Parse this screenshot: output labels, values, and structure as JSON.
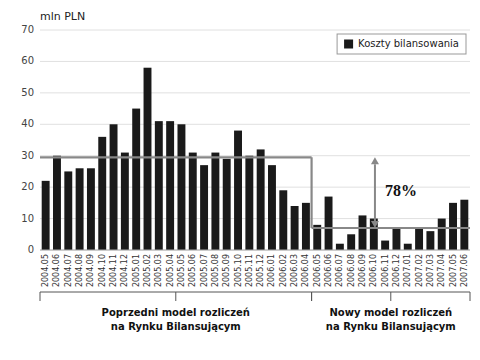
{
  "chart_data": {
    "type": "bar",
    "y_label": "mln PLN",
    "categories": [
      "2004.05",
      "2004.06",
      "2004.07",
      "2004.08",
      "2004.09",
      "2004.10",
      "2004.11",
      "2004.12",
      "2005.01",
      "2005.02",
      "2005.03",
      "2005.04",
      "2005.05",
      "2005.06",
      "2005.07",
      "2005.08",
      "2005.09",
      "2005.10",
      "2005.11",
      "2005.12",
      "2006.01",
      "2006.02",
      "2006.03",
      "2006.04",
      "2006.05",
      "2006.06",
      "2006.07",
      "2006.08",
      "2006.09",
      "2006.10",
      "2006.11",
      "2006.12",
      "2007.01",
      "2007.02",
      "2007.03",
      "2007.04",
      "2007.05",
      "2007.06"
    ],
    "series": [
      {
        "name": "Koszty bilansowania",
        "color": "#1a1a1a",
        "values": [
          22,
          30,
          25,
          26,
          26,
          36,
          40,
          31,
          45,
          58,
          41,
          41,
          40,
          31,
          27,
          31,
          29,
          38,
          30,
          32,
          27,
          19,
          14,
          15,
          8,
          17,
          2,
          5,
          11,
          10,
          3,
          7,
          2,
          7,
          6,
          10,
          15,
          16
        ]
      }
    ],
    "periods": [
      {
        "from": "2004.05",
        "level": 29.5,
        "labels": [
          "Poprzedni model rozliczeń",
          "na Rynku Bilansującym"
        ]
      },
      {
        "from": "2006.05",
        "level": 7,
        "labels": [
          "Nowy model rozliczeń",
          "na Rynku Bilansującym"
        ]
      }
    ],
    "change_label": "78%",
    "ylim": [
      0,
      70
    ],
    "yticks": [
      0,
      10,
      20,
      30,
      40,
      50,
      60,
      70
    ],
    "grid": true,
    "legend": "upper right"
  }
}
